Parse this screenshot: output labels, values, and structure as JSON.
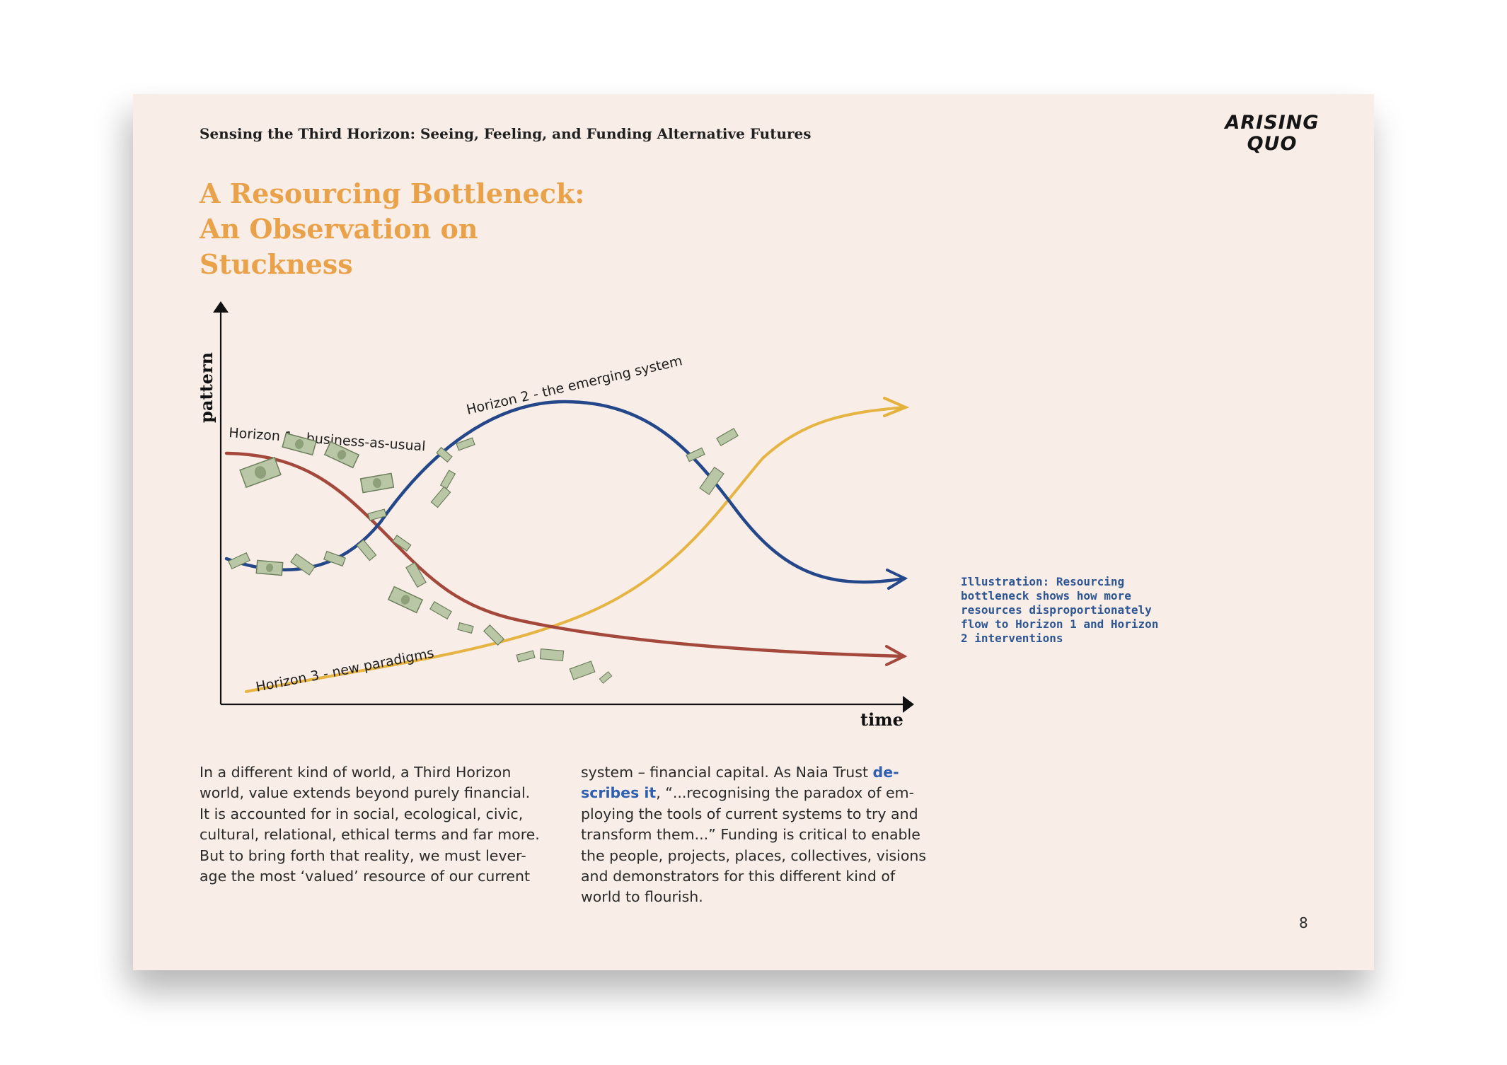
{
  "header": {
    "running_title": "Sensing the Third Horizon: Seeing, Feeling, and Funding Alternative Futures",
    "logo_line1": "ARISING",
    "logo_line2": "QUO"
  },
  "title_lines": [
    "A Resourcing Bottleneck:",
    "An Observation on",
    "Stuckness"
  ],
  "figure": {
    "axis_y_label": "pattern",
    "axis_x_label": "time",
    "curve_labels": {
      "h1": "Horizon 1 - business-as-usual",
      "h2": "Horizon 2 - the emerging system",
      "h3": "Horizon 3 - new paradigms"
    },
    "icons": [
      "money-banknote-icon",
      "arrowhead-icon"
    ],
    "colors": {
      "horizon1": "#a4483c",
      "horizon2": "#24478a",
      "horizon3": "#e4b13a",
      "money": "#b9c7a6",
      "title": "#e9a24a",
      "caption": "#2d5592"
    }
  },
  "caption": {
    "lines": [
      "Illustration: Resourcing",
      "bottleneck shows how more",
      "resources disproportionately",
      "flow to Horizon 1 and Horizon",
      "2 interventions"
    ]
  },
  "body": {
    "left_lines": [
      "In a different kind of world, a Third Horizon",
      "world, value extends beyond purely financial.",
      "It is accounted for in social, ecological, civic,",
      "cultural, relational, ethical terms and far more.",
      "But to bring forth that reality, we must lever-",
      "age the most ‘valued’ resource of our current"
    ],
    "right_line1_pre": "system – financial capital. As Naia Trust ",
    "right_link_part1": "de-",
    "right_link_part2": "scribes it",
    "right_line2_post": ", “...recognising the paradox of em-",
    "right_lines_rest": [
      "ploying the tools of current systems to try and",
      "transform them...” Funding is critical to enable",
      "the people, projects, places, collectives, visions",
      "and demonstrators for this different kind of",
      "world to flourish."
    ]
  },
  "page_number": "8"
}
